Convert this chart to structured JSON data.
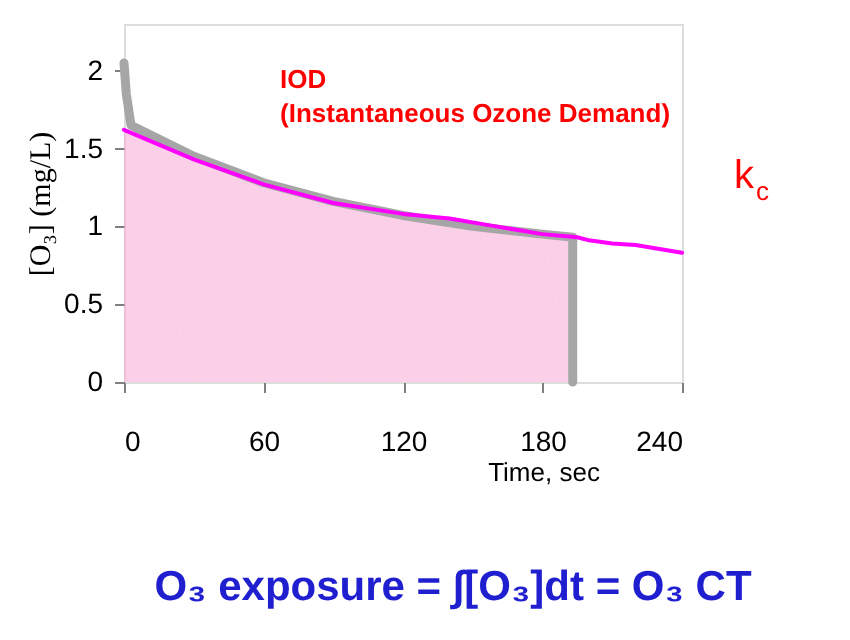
{
  "chart_data": {
    "type": "line",
    "title": "O₃ exposure =  ∫[O₃]dt = O₃ CT",
    "xlabel": "Time, sec",
    "ylabel": "[O₃] (mg/L)",
    "xlim": [
      0,
      240
    ],
    "xticks": [
      0,
      60,
      120,
      180,
      240
    ],
    "ylim": [
      0,
      2.3
    ],
    "yticks": [
      0,
      0.5,
      1,
      1.5,
      2
    ],
    "grid": false,
    "series": [
      {
        "type": "area",
        "color": "#f7a8d4",
        "x": [
          0,
          30,
          60,
          90,
          120,
          150,
          180,
          193
        ],
        "values": [
          1.63,
          1.45,
          1.28,
          1.16,
          1.08,
          1.01,
          0.95,
          0.93
        ]
      },
      {
        "type": "line",
        "color": "#a6a6a6",
        "x": [
          0,
          1,
          3,
          30,
          60,
          90,
          120,
          150,
          180,
          193,
          193
        ],
        "values": [
          2.05,
          1.85,
          1.65,
          1.45,
          1.28,
          1.16,
          1.07,
          1.0,
          0.95,
          0.93,
          0
        ]
      },
      {
        "type": "line",
        "color": "#ff00ff",
        "x": [
          0,
          30,
          60,
          90,
          120,
          140,
          160,
          180,
          195,
          200,
          210,
          220,
          240
        ],
        "values": [
          1.62,
          1.43,
          1.27,
          1.15,
          1.08,
          1.05,
          1.0,
          0.95,
          0.93,
          0.91,
          0.89,
          0.88,
          0.83
        ]
      }
    ],
    "annotations": [
      "IOD\n(Instantaneous Ozone Demand)",
      "k$_{c}$"
    ]
  }
}
